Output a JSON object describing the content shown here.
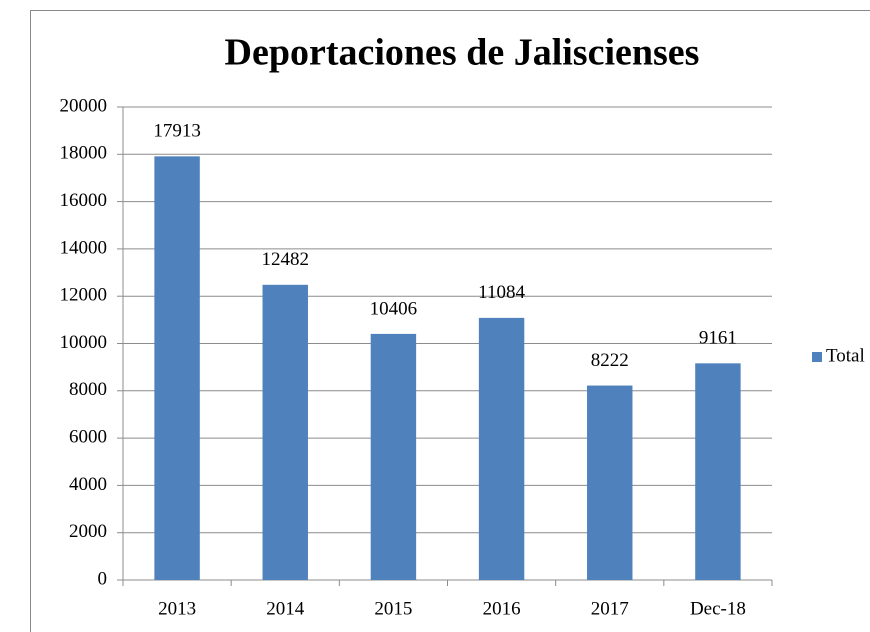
{
  "chart_data": {
    "type": "bar",
    "title": "Deportaciones de Jaliscienses",
    "categories": [
      "2013",
      "2014",
      "2015",
      "2016",
      "2017",
      "Dec-18"
    ],
    "series": [
      {
        "name": "Total",
        "color": "#4f81bd",
        "values": [
          17913,
          12482,
          10406,
          11084,
          8222,
          9161
        ]
      }
    ],
    "ylim": [
      0,
      20000
    ],
    "yticks": [
      0,
      2000,
      4000,
      6000,
      8000,
      10000,
      12000,
      14000,
      16000,
      18000,
      20000
    ],
    "grid": true,
    "legend": "right"
  }
}
